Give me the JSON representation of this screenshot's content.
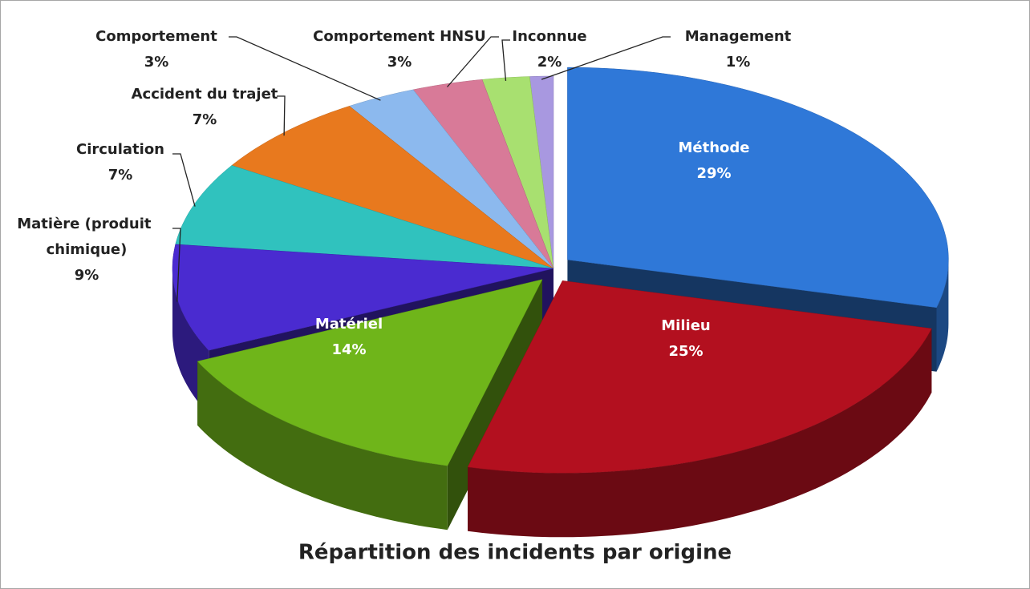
{
  "chart_data": {
    "type": "pie",
    "title": "Répartition des incidents par origine",
    "categories": [
      "Méthode",
      "Milieu",
      "Matériel",
      "Matière (produit chimique)",
      "Circulation",
      "Accident du trajet",
      "Comportement",
      "Comportement HNSU",
      "Inconnue",
      "Management"
    ],
    "values": [
      29,
      25,
      14,
      9,
      7,
      7,
      3,
      3,
      2,
      1
    ],
    "value_labels": [
      "29%",
      "25%",
      "14%",
      "9%",
      "7%",
      "7%",
      "3%",
      "3%",
      "2%",
      "1%"
    ],
    "colors": [
      "#2f78d8",
      "#b3101f",
      "#6fb51a",
      "#4a2bd0",
      "#30c2be",
      "#e8791e",
      "#8cb9ee",
      "#d87a98",
      "#a8e070",
      "#a898e0"
    ]
  }
}
